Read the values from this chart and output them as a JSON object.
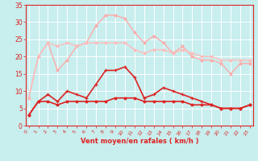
{
  "x": [
    0,
    1,
    2,
    3,
    4,
    5,
    6,
    7,
    8,
    9,
    10,
    11,
    12,
    13,
    14,
    15,
    16,
    17,
    18,
    19,
    20,
    21,
    22,
    23
  ],
  "series": [
    {
      "color": "#ffaaaa",
      "linewidth": 1.0,
      "marker": "o",
      "markersize": 2.0,
      "values": [
        8,
        20,
        24,
        16,
        19,
        23,
        24,
        29,
        32,
        32,
        31,
        27,
        24,
        26,
        24,
        21,
        23,
        20,
        19,
        19,
        18,
        15,
        18,
        18
      ]
    },
    {
      "color": "#ffbbbb",
      "linewidth": 1.0,
      "marker": "o",
      "markersize": 2.0,
      "values": [
        8,
        20,
        24,
        23,
        24,
        23,
        24,
        24,
        24,
        24,
        24,
        22,
        21,
        22,
        22,
        21,
        22,
        21,
        20,
        20,
        19,
        19,
        19,
        19
      ]
    },
    {
      "color": "#dd2222",
      "linewidth": 1.2,
      "marker": "+",
      "markersize": 3.5,
      "values": [
        3,
        7,
        9,
        7,
        10,
        9,
        8,
        12,
        16,
        16,
        17,
        14,
        8,
        9,
        11,
        10,
        9,
        8,
        7,
        6,
        5,
        5,
        5,
        6
      ]
    },
    {
      "color": "#dd2222",
      "linewidth": 1.2,
      "marker": "o",
      "markersize": 2.0,
      "values": [
        3,
        7,
        7,
        6,
        7,
        7,
        7,
        7,
        7,
        8,
        8,
        8,
        7,
        7,
        7,
        7,
        7,
        6,
        6,
        6,
        5,
        5,
        5,
        6
      ]
    }
  ],
  "xlabel": "Vent moyen/en rafales ( km/h )",
  "xlim": [
    -0.3,
    23.3
  ],
  "ylim": [
    0,
    35
  ],
  "yticks": [
    0,
    5,
    10,
    15,
    20,
    25,
    30,
    35
  ],
  "xticks": [
    0,
    1,
    2,
    3,
    4,
    5,
    6,
    7,
    8,
    9,
    10,
    11,
    12,
    13,
    14,
    15,
    16,
    17,
    18,
    19,
    20,
    21,
    22,
    23
  ],
  "background_color": "#c8eeee",
  "grid_color": "#ffffff",
  "tick_color": "#dd2222",
  "label_color": "#dd2222"
}
